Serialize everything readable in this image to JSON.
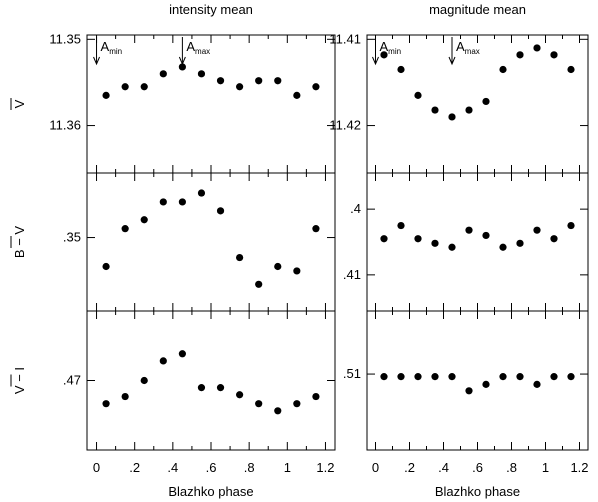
{
  "chart_data": {
    "type": "scatter",
    "columns": [
      {
        "title": "intensity mean",
        "xlabel": "Blazhko phase",
        "xlim": [
          -0.05,
          1.25
        ],
        "xticks": [
          "0",
          ".2",
          ".4",
          ".6",
          ".8",
          "1",
          "1.2"
        ],
        "xtick_values": [
          0,
          0.2,
          0.4,
          0.6,
          0.8,
          1.0,
          1.2
        ],
        "markers": [
          {
            "label": "A",
            "sub": "min",
            "x": 0.0
          },
          {
            "label": "A",
            "sub": "max",
            "x": 0.45
          }
        ],
        "panels": [
          {
            "ylabel": "V",
            "ylim": [
              11.3495,
              11.3655
            ],
            "y_inverted": true,
            "yticks": [
              "11.35",
              "11.36"
            ],
            "ytick_values": [
              11.35,
              11.36
            ],
            "x": [
              0.05,
              0.15,
              0.25,
              0.35,
              0.45,
              0.55,
              0.65,
              0.75,
              0.85,
              0.95,
              1.05,
              1.15
            ],
            "y": [
              11.3565,
              11.3555,
              11.3555,
              11.354,
              11.3532,
              11.354,
              11.3548,
              11.3555,
              11.3548,
              11.3548,
              11.3565,
              11.3555
            ]
          },
          {
            "ylabel": "B − V",
            "ylim": [
              0.3335,
              0.3645
            ],
            "y_inverted": false,
            "yticks": [
              ".35"
            ],
            "ytick_values": [
              0.35
            ],
            "x": [
              0.05,
              0.15,
              0.25,
              0.35,
              0.45,
              0.55,
              0.65,
              0.75,
              0.85,
              0.95,
              1.05,
              1.15
            ],
            "y": [
              0.3435,
              0.352,
              0.354,
              0.358,
              0.358,
              0.36,
              0.356,
              0.3455,
              0.3395,
              0.3435,
              0.3425,
              0.352
            ]
          },
          {
            "ylabel": "V − I",
            "ylim": [
              0.4505,
              0.4895
            ],
            "y_inverted": false,
            "yticks": [
              ".47"
            ],
            "ytick_values": [
              0.47
            ],
            "x": [
              0.05,
              0.15,
              0.25,
              0.35,
              0.45,
              0.55,
              0.65,
              0.75,
              0.85,
              0.95,
              1.05,
              1.15
            ],
            "y": [
              0.4635,
              0.4655,
              0.47,
              0.4755,
              0.4775,
              0.468,
              0.468,
              0.466,
              0.4635,
              0.4615,
              0.4635,
              0.4655
            ]
          }
        ]
      },
      {
        "title": "magnitude mean",
        "xlabel": "Blazhko phase",
        "xlim": [
          -0.05,
          1.25
        ],
        "xticks": [
          "0",
          ".2",
          ".4",
          ".6",
          ".8",
          "1",
          "1.2"
        ],
        "xtick_values": [
          0,
          0.2,
          0.4,
          0.6,
          0.8,
          1.0,
          1.2
        ],
        "markers": [
          {
            "label": "A",
            "sub": "min",
            "x": 0.0
          },
          {
            "label": "A",
            "sub": "max",
            "x": 0.45
          }
        ],
        "panels": [
          {
            "ylabel": "",
            "ylim": [
              11.4095,
              11.4255
            ],
            "y_inverted": true,
            "yticks": [
              "11.41",
              "11.42"
            ],
            "ytick_values": [
              11.41,
              11.42
            ],
            "x": [
              0.05,
              0.15,
              0.25,
              0.35,
              0.45,
              0.55,
              0.65,
              0.75,
              0.85,
              0.95,
              1.05,
              1.15
            ],
            "y": [
              11.4118,
              11.4135,
              11.4165,
              11.4182,
              11.419,
              11.4182,
              11.4172,
              11.4135,
              11.4118,
              11.411,
              11.4118,
              11.4135
            ]
          },
          {
            "ylabel": "",
            "ylim": [
              0.3945,
              0.4155
            ],
            "y_inverted": true,
            "yticks": [
              ".4",
              ".41"
            ],
            "ytick_values": [
              0.4,
              0.41
            ],
            "x": [
              0.05,
              0.15,
              0.25,
              0.35,
              0.45,
              0.55,
              0.65,
              0.75,
              0.85,
              0.95,
              1.05,
              1.15
            ],
            "y": [
              0.4045,
              0.4025,
              0.4045,
              0.4052,
              0.4058,
              0.4032,
              0.404,
              0.4058,
              0.4052,
              0.4032,
              0.4045,
              0.4025
            ]
          },
          {
            "ylabel": "",
            "ylim": [
              0.4805,
              0.5345
            ],
            "y_inverted": false,
            "yticks": [
              ".51"
            ],
            "ytick_values": [
              0.51
            ],
            "x": [
              0.05,
              0.15,
              0.25,
              0.35,
              0.45,
              0.55,
              0.65,
              0.75,
              0.85,
              0.95,
              1.05,
              1.15
            ],
            "y": [
              0.509,
              0.509,
              0.509,
              0.509,
              0.509,
              0.5035,
              0.506,
              0.509,
              0.509,
              0.506,
              0.509,
              0.509
            ]
          }
        ]
      }
    ]
  }
}
